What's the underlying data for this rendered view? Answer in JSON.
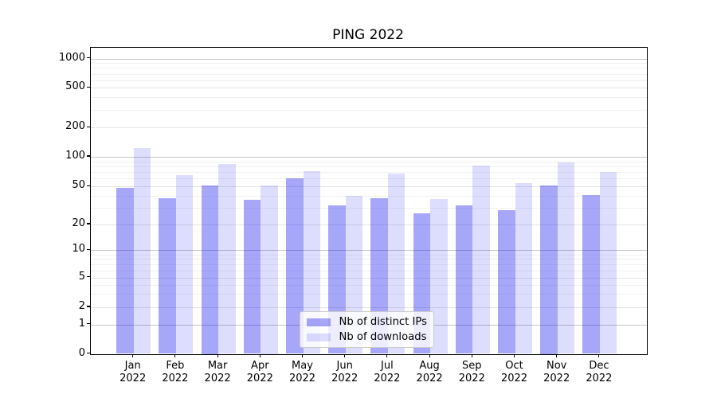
{
  "chart_data": {
    "type": "bar",
    "title": "PING 2022",
    "categories": [
      "Jan 2022",
      "Feb 2022",
      "Mar 2022",
      "Apr 2022",
      "May 2022",
      "Jun 2022",
      "Jul 2022",
      "Aug 2022",
      "Sep 2022",
      "Oct 2022",
      "Nov 2022",
      "Dec 2022"
    ],
    "x_tick_line1": [
      "Jan",
      "Feb",
      "Mar",
      "Apr",
      "May",
      "Jun",
      "Jul",
      "Aug",
      "Sep",
      "Oct",
      "Nov",
      "Dec"
    ],
    "x_tick_line2": "2022",
    "series": [
      {
        "name": "Nb of distinct IPs",
        "color": "#a7a7f8",
        "fill_rgba": "rgba(0,0,240,0.345)",
        "values": [
          48,
          38,
          51,
          36,
          60,
          32,
          38,
          26,
          32,
          28,
          51,
          41
        ]
      },
      {
        "name": "Nb of downloads",
        "color": "#dcdcfb",
        "fill_rgba": "rgba(0,0,240,0.135)",
        "values": [
          123,
          65,
          85,
          51,
          72,
          40,
          68,
          37,
          81,
          54,
          88,
          70
        ]
      }
    ],
    "yscale": "symlog",
    "yticks": [
      0,
      1,
      2,
      5,
      10,
      20,
      50,
      100,
      200,
      500,
      1000
    ],
    "ylim": [
      0,
      1300
    ],
    "grid": "both",
    "gridline_minor_values": [
      3,
      4,
      6,
      7,
      8,
      9,
      30,
      40,
      60,
      70,
      80,
      90,
      300,
      400,
      600,
      700,
      800,
      900
    ],
    "legend_position": "lower center",
    "background_color": "#ffffff",
    "axis_color": "#000000"
  }
}
